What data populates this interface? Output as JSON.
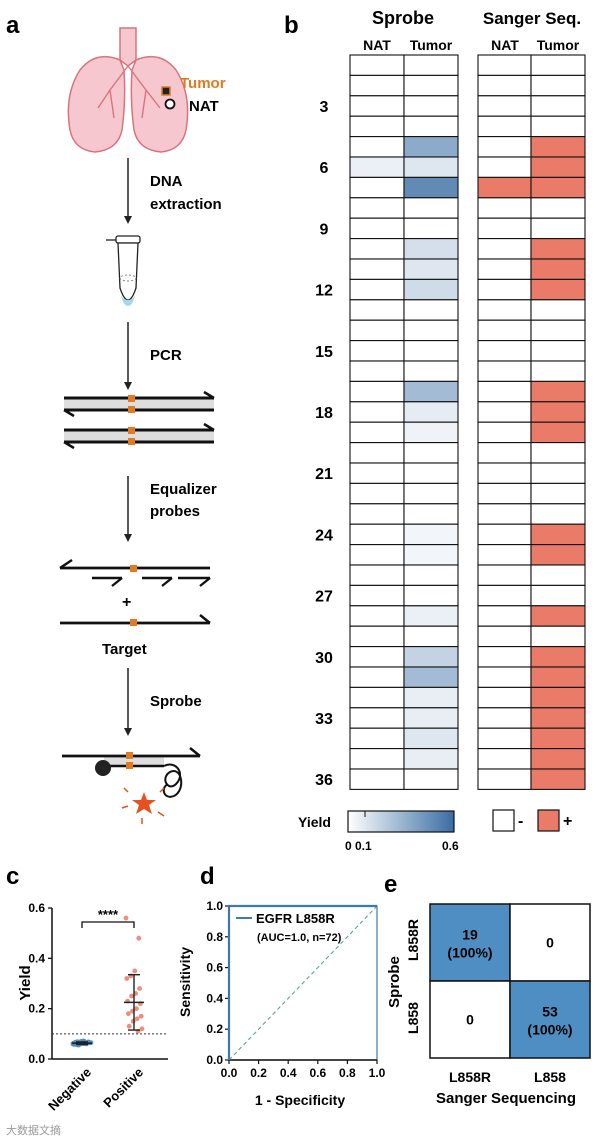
{
  "panels": {
    "a": "a",
    "b": "b",
    "c": "c",
    "d": "d",
    "e": "e"
  },
  "schematic": {
    "tumor_label": "Tumor",
    "nat_label": "NAT",
    "step1_line1": "DNA",
    "step1_line2": "extraction",
    "step2": "PCR",
    "step3_line1": "Equalizer",
    "step3_line2": "probes",
    "plus": "+",
    "target_label": "Target",
    "step4": "Sprobe",
    "colors": {
      "lung": "#f7c7cf",
      "lung_outline": "#d9737f",
      "orange": "#e07b22",
      "star": "#e8501f",
      "arrow": "#222222"
    }
  },
  "heatmap": {
    "sprobe_title": "Sprobe",
    "sanger_title": "Sanger Seq.",
    "col_nat": "NAT",
    "col_tumor": "Tumor",
    "row_labels": [
      "3",
      "6",
      "9",
      "12",
      "15",
      "18",
      "21",
      "24",
      "27",
      "30",
      "33",
      "36"
    ],
    "sprobe_nat": [
      0,
      0,
      0,
      0,
      0,
      0.06,
      0,
      0,
      0,
      0,
      0,
      0,
      0,
      0,
      0,
      0,
      0,
      0,
      0,
      0,
      0,
      0,
      0,
      0,
      0,
      0,
      0,
      0,
      0,
      0,
      0,
      0,
      0,
      0,
      0,
      0
    ],
    "sprobe_tumor": [
      0,
      0,
      0,
      0,
      0.35,
      0.1,
      0.48,
      0,
      0,
      0.13,
      0.1,
      0.15,
      0,
      0,
      0,
      0,
      0.28,
      0.08,
      0.05,
      0,
      0,
      0,
      0,
      0.04,
      0.04,
      0,
      0,
      0.06,
      0,
      0.18,
      0.28,
      0.07,
      0.07,
      0.1,
      0.07,
      0
    ],
    "sanger_nat": [
      0,
      0,
      0,
      0,
      0,
      0,
      1,
      0,
      0,
      0,
      0,
      0,
      0,
      0,
      0,
      0,
      0,
      0,
      0,
      0,
      0,
      0,
      0,
      0,
      0,
      0,
      0,
      0,
      0,
      0,
      0,
      0,
      0,
      0,
      0,
      0
    ],
    "sanger_tumor": [
      0,
      0,
      0,
      0,
      1,
      1,
      1,
      0,
      0,
      1,
      1,
      1,
      0,
      0,
      0,
      0,
      1,
      1,
      1,
      0,
      0,
      0,
      0,
      1,
      1,
      0,
      0,
      1,
      0,
      1,
      1,
      1,
      1,
      1,
      1,
      1
    ],
    "yield_label": "Yield",
    "scale_ticks": [
      "0",
      "0.1",
      "0.6"
    ],
    "neg_label": "-",
    "pos_label": "+",
    "colors": {
      "pos": "#e97b68",
      "neg": "#ffffff",
      "scale_low": "#ffffff",
      "scale_high": "#3a6da3",
      "border": "#111111"
    }
  },
  "chart_data": [
    {
      "type": "scatter",
      "panel": "c",
      "ylabel": "Yield",
      "categories": [
        "Negative",
        "Positive"
      ],
      "ylim": [
        0,
        0.6
      ],
      "yticks": [
        "0.0",
        "0.2",
        "0.4",
        "0.6"
      ],
      "threshold": 0.1,
      "significance": "****",
      "series": [
        {
          "name": "Negative",
          "color": "#4a8ac4",
          "values": [
            0.06,
            0.065,
            0.07,
            0.055,
            0.06,
            0.068,
            0.072,
            0.058,
            0.063,
            0.066,
            0.061,
            0.059,
            0.067,
            0.064,
            0.062,
            0.07,
            0.057,
            0.065,
            0.06,
            0.063,
            0.069,
            0.062,
            0.066,
            0.061,
            0.064,
            0.058,
            0.067,
            0.063,
            0.06,
            0.065
          ],
          "mean": 0.063,
          "sd": 0.005
        },
        {
          "name": "Positive",
          "color": "#e9826f",
          "values": [
            0.56,
            0.48,
            0.35,
            0.33,
            0.32,
            0.28,
            0.26,
            0.25,
            0.23,
            0.22,
            0.2,
            0.19,
            0.18,
            0.17,
            0.16,
            0.15,
            0.13,
            0.12,
            0.11
          ],
          "mean": 0.225,
          "sd": 0.11
        }
      ]
    },
    {
      "type": "line",
      "panel": "d",
      "xlabel": "1 - Specificity",
      "ylabel": "Sensitivity",
      "xlim": [
        0,
        1
      ],
      "ylim": [
        0,
        1
      ],
      "ticks": [
        "0.0",
        "0.2",
        "0.4",
        "0.6",
        "0.8",
        "1.0"
      ],
      "legend": "EGFR L858R",
      "legend_sub": "(AUC=1.0, n=72)",
      "series": [
        {
          "name": "EGFR L858R",
          "color": "#3c78b5",
          "x": [
            0,
            0,
            1
          ],
          "y": [
            0,
            1,
            1
          ]
        },
        {
          "name": "chance",
          "color": "#5aa3a0",
          "x": [
            0,
            1
          ],
          "y": [
            0,
            1
          ]
        }
      ]
    },
    {
      "type": "table",
      "panel": "e",
      "row_title": "Sprobe",
      "col_title": "Sanger Sequencing",
      "rows": [
        "L858R",
        "L858"
      ],
      "cols": [
        "L858R",
        "L858"
      ],
      "cells": [
        {
          "value": "19",
          "pct": "(100%)",
          "highlight": true
        },
        {
          "value": "0",
          "pct": "",
          "highlight": false
        },
        {
          "value": "0",
          "pct": "",
          "highlight": false
        },
        {
          "value": "53",
          "pct": "(100%)",
          "highlight": true
        }
      ],
      "highlight_color": "#4f8ec2"
    }
  ],
  "watermark": "大数据文摘"
}
